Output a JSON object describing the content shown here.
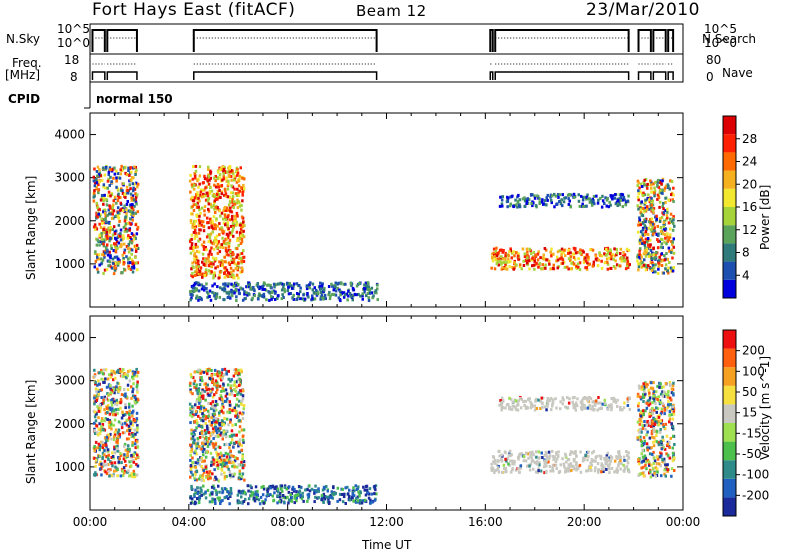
{
  "header": {
    "station": "Fort Hays East (fitACF)",
    "beam": "Beam 12",
    "date": "23/Mar/2010"
  },
  "status_panels": {
    "nsky_label": "N.Sky",
    "nsearch_label": "N.Search",
    "freq_label_line1": "Freq.",
    "freq_label_line2": "[MHz]",
    "nave_label": "Nave",
    "cpid_label": "CPID",
    "cpid_value": "normal 150",
    "noise_ticks": [
      "10^5",
      "10^0"
    ],
    "freq_ticks": [
      "18",
      "8"
    ],
    "nave_ticks": [
      "80",
      "0"
    ]
  },
  "chart_data": [
    {
      "type": "heatmap",
      "name": "power",
      "ylabel": "Slant Range [km]",
      "xlabel": "",
      "ylim": [
        0,
        4500
      ],
      "yticks": [
        1000,
        2000,
        3000,
        4000
      ],
      "xlim_hours": [
        0,
        24
      ],
      "colorbar": {
        "label": "Power [dB]",
        "ticks": [
          "28",
          "24",
          "20",
          "16",
          "12",
          "8",
          "4"
        ],
        "colors": [
          "#0000dd",
          "#1c4fb0",
          "#2f7a7a",
          "#5aa35a",
          "#a6d33a",
          "#f2e830",
          "#f5b020",
          "#ff6a00",
          "#ff2000",
          "#dd0000"
        ]
      },
      "regions": [
        {
          "t": [
            0.1,
            0.6
          ],
          "r": [
            800,
            3300
          ],
          "level": "mixed"
        },
        {
          "t": [
            0.6,
            1.9
          ],
          "r": [
            800,
            3300
          ],
          "level": "mixed"
        },
        {
          "t": [
            4.0,
            6.2
          ],
          "r": [
            700,
            3300
          ],
          "level": "high"
        },
        {
          "t": [
            4.0,
            11.6
          ],
          "r": [
            180,
            600
          ],
          "level": "low"
        },
        {
          "t": [
            16.2,
            21.8
          ],
          "r": [
            900,
            1400
          ],
          "level": "high"
        },
        {
          "t": [
            16.5,
            21.8
          ],
          "r": [
            2350,
            2650
          ],
          "level": "low"
        },
        {
          "t": [
            22.1,
            23.6
          ],
          "r": [
            800,
            3000
          ],
          "level": "mixed"
        }
      ]
    },
    {
      "type": "heatmap",
      "name": "velocity",
      "ylabel": "Slant Range [km]",
      "xlabel": "Time UT",
      "ylim": [
        0,
        4500
      ],
      "yticks": [
        1000,
        2000,
        3000,
        4000
      ],
      "xlim_hours": [
        0,
        24
      ],
      "xticks": [
        "00:00",
        "04:00",
        "08:00",
        "12:00",
        "16:00",
        "20:00",
        "00:00"
      ],
      "colorbar": {
        "label": "Velocity [m s^-1]",
        "ticks": [
          "200",
          "100",
          "50",
          "15",
          "-15",
          "-50",
          "-100",
          "-200"
        ],
        "colors": [
          "#1a2a9a",
          "#2060c0",
          "#2f8a8a",
          "#4cbf4c",
          "#9ee050",
          "#c8c8c0",
          "#f5e040",
          "#f5a020",
          "#ff6010",
          "#ee1010"
        ]
      },
      "regions": [
        {
          "t": [
            0.1,
            1.9
          ],
          "r": [
            800,
            3300
          ],
          "level": "mixed"
        },
        {
          "t": [
            4.0,
            6.2
          ],
          "r": [
            700,
            3300
          ],
          "level": "mixed"
        },
        {
          "t": [
            4.0,
            11.6
          ],
          "r": [
            180,
            600
          ],
          "level": "low"
        },
        {
          "t": [
            16.2,
            21.8
          ],
          "r": [
            900,
            1400
          ],
          "level": "gray"
        },
        {
          "t": [
            16.5,
            21.8
          ],
          "r": [
            2350,
            2650
          ],
          "level": "gray"
        },
        {
          "t": [
            22.1,
            23.6
          ],
          "r": [
            800,
            3000
          ],
          "level": "mixed"
        }
      ]
    }
  ]
}
